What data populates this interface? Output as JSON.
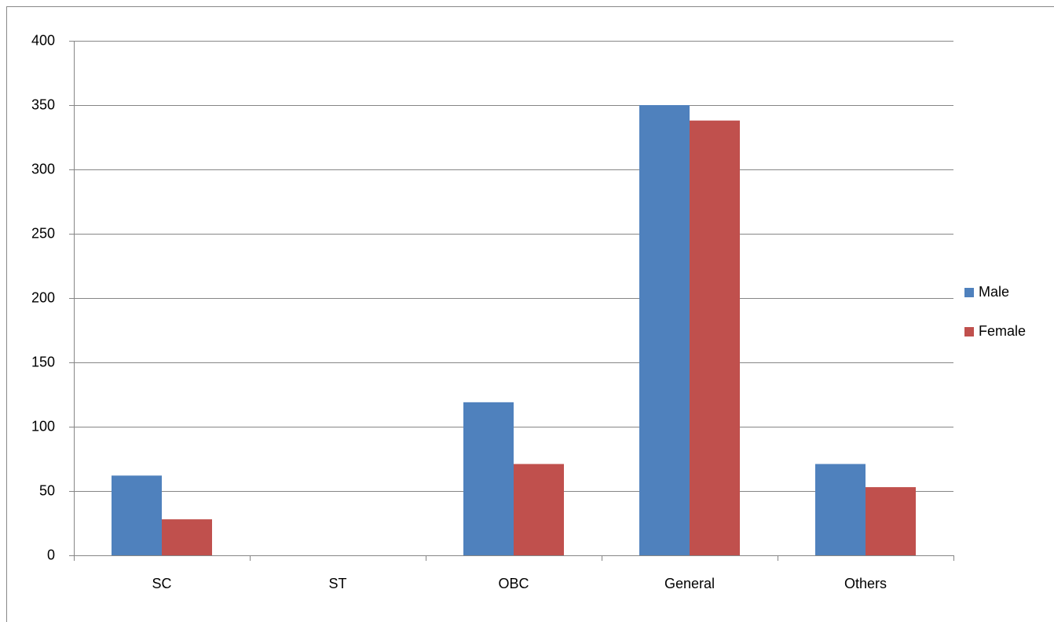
{
  "chart_data": {
    "type": "bar",
    "categories": [
      "SC",
      "ST",
      "OBC",
      "General",
      "Others"
    ],
    "series": [
      {
        "name": "Male",
        "color": "#4f81bd",
        "values": [
          62,
          0,
          119,
          350,
          71
        ]
      },
      {
        "name": "Female",
        "color": "#c0504d",
        "values": [
          28,
          0,
          71,
          338,
          53
        ]
      }
    ],
    "ylim": [
      0,
      400
    ],
    "yticks": [
      0,
      50,
      100,
      150,
      200,
      250,
      300,
      350,
      400
    ],
    "grid": true,
    "legend": "right"
  }
}
